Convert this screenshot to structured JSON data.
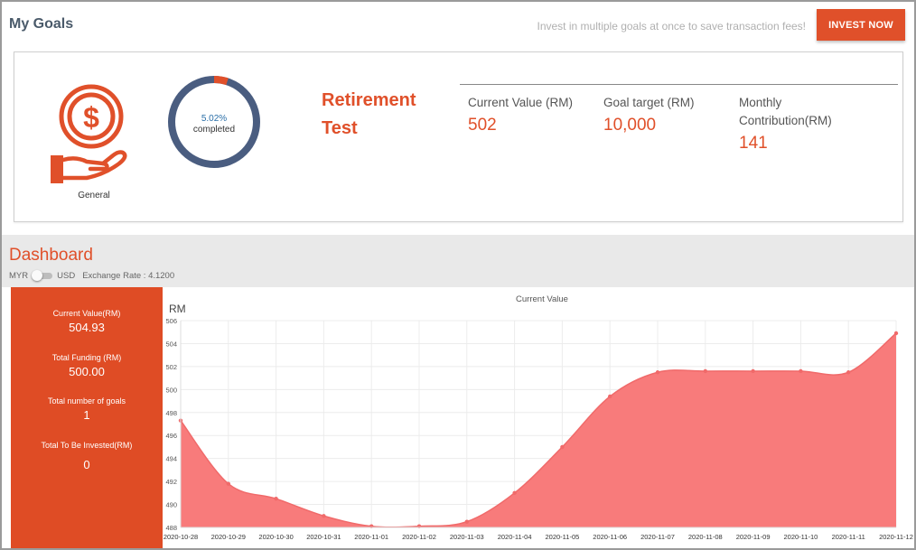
{
  "header": {
    "title": "My Goals",
    "hint": "Invest in multiple goals at once to save transaction fees!",
    "invest_label": "INVEST NOW"
  },
  "goal": {
    "category": "General",
    "progress_pct": 5.02,
    "progress_text": "5.02%",
    "progress_suffix": "completed",
    "name": "Retirement Test",
    "stats": [
      {
        "label": "Current Value (RM)",
        "value": "502"
      },
      {
        "label": "Goal target (RM)",
        "value": "10,000"
      },
      {
        "label": "Monthly Contribution(RM)",
        "value": "141"
      }
    ]
  },
  "dashboard": {
    "title": "Dashboard",
    "currency_left": "MYR",
    "currency_right": "USD",
    "exchange_rate": "Exchange Rate : 4.1200",
    "summary": [
      {
        "label": "Current Value(RM)",
        "value": "504.93"
      },
      {
        "label": "Total Funding (RM)",
        "value": "500.00"
      },
      {
        "label": "Total number of goals",
        "value": "1"
      },
      {
        "label": "Total To Be Invested(RM)",
        "value": "0"
      }
    ]
  },
  "colors": {
    "accent": "#e0502a",
    "donut_track": "#4a5d80",
    "chart_fill": "#f87b7b",
    "chart_line": "#f06a6a"
  },
  "chart_data": {
    "type": "area",
    "title": "Current Value",
    "ylabel": "RM",
    "xlabel": "",
    "x": [
      "2020-10-28",
      "2020-10-29",
      "2020-10-30",
      "2020-10-31",
      "2020-11-01",
      "2020-11-02",
      "2020-11-03",
      "2020-11-04",
      "2020-11-05",
      "2020-11-06",
      "2020-11-07",
      "2020-11-08",
      "2020-11-09",
      "2020-11-10",
      "2020-11-11",
      "2020-11-12"
    ],
    "series": [
      {
        "values": [
          497.3,
          491.8,
          490.5,
          489.0,
          488.1,
          488.1,
          488.5,
          491.0,
          495.0,
          499.4,
          501.5,
          501.6,
          501.6,
          501.6,
          501.5,
          504.9
        ]
      }
    ],
    "ylim": [
      488,
      506
    ],
    "yticks": [
      488,
      490,
      492,
      494,
      496,
      498,
      500,
      502,
      504,
      506
    ],
    "grid": true
  }
}
